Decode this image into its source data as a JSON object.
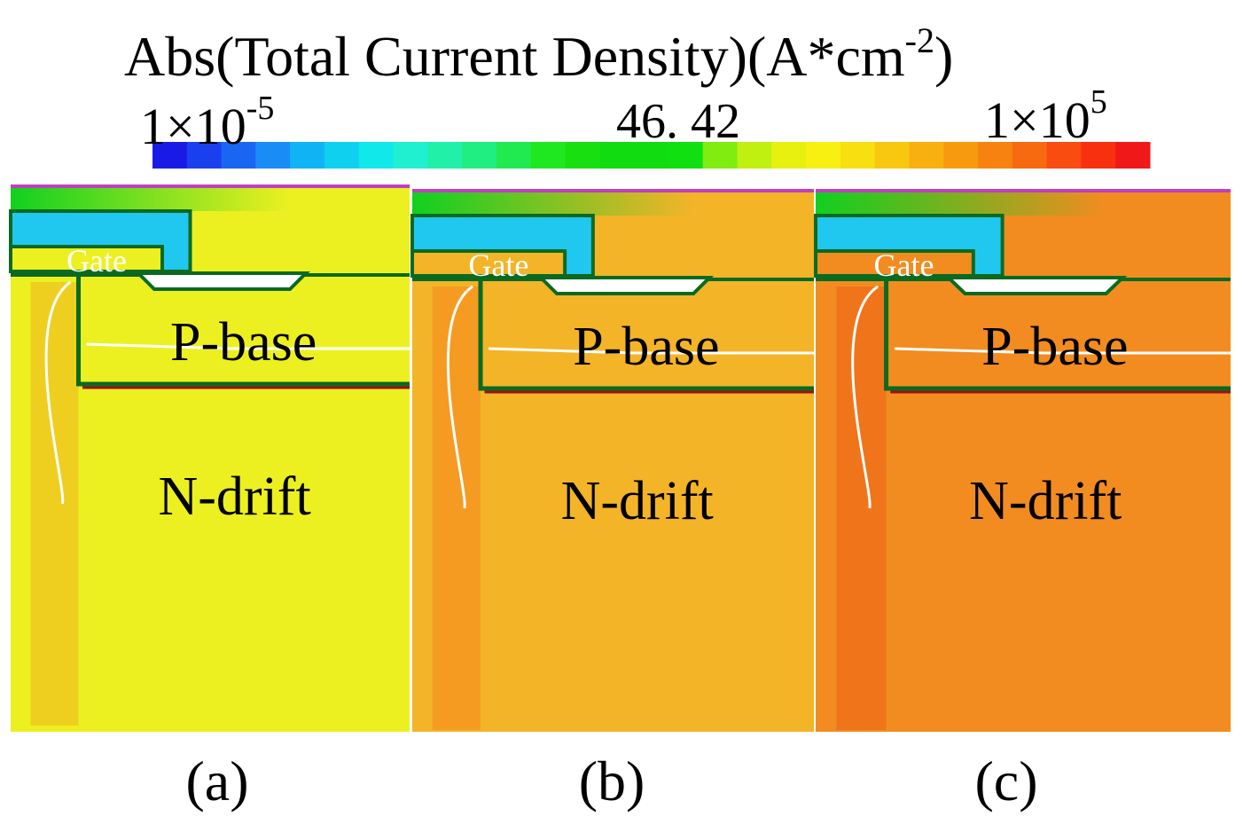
{
  "title": {
    "text": "Abs(Total Current Density)(A*cm",
    "exponent": "-2",
    "close": ")"
  },
  "colorbar": {
    "min": {
      "base": "1×10",
      "exponent": "-5"
    },
    "mid": "46. 42",
    "max": {
      "base": "1×10",
      "exponent": "5"
    }
  },
  "panels": [
    {
      "caption": "(a)",
      "gate": "Gate",
      "p_base": "P-base",
      "n_drift": "N-drift"
    },
    {
      "caption": "(b)",
      "gate": "Gate",
      "p_base": "P-base",
      "n_drift": "N-drift"
    },
    {
      "caption": "(c)",
      "gate": "Gate",
      "p_base": "P-base",
      "n_drift": "N-drift"
    }
  ]
}
